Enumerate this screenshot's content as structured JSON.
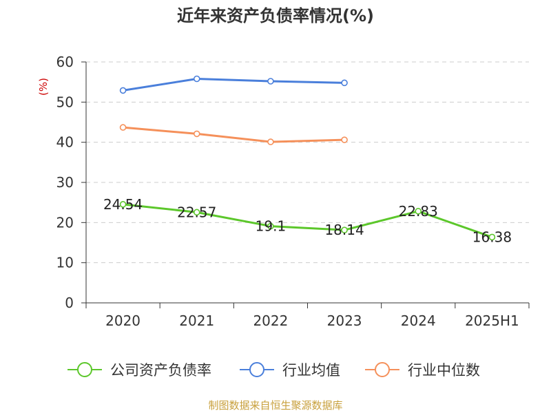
{
  "chart_data": {
    "type": "line",
    "title": "近年来资产负债率情况(%)",
    "ylabel": "(%)",
    "categories": [
      "2020",
      "2021",
      "2022",
      "2023",
      "2024",
      "2025H1"
    ],
    "ylim": [
      0,
      60
    ],
    "yticks": [
      "0",
      "10",
      "20",
      "30",
      "40",
      "50",
      "60"
    ],
    "grid": true,
    "legend_position": "bottom",
    "series": [
      {
        "name": "公司资产负债率",
        "color": "#5cc72b",
        "values": [
          24.54,
          22.57,
          19.1,
          18.14,
          22.83,
          16.38
        ],
        "labels": [
          "24.54",
          "22.57",
          "19.1",
          "18.14",
          "22.83",
          "16.38"
        ]
      },
      {
        "name": "行业均值",
        "color": "#4a7fdb",
        "values": [
          52.9,
          55.8,
          55.2,
          54.8,
          null,
          null
        ]
      },
      {
        "name": "行业中位数",
        "color": "#f5905a",
        "values": [
          43.7,
          42.1,
          40.1,
          40.6,
          null,
          null
        ]
      }
    ]
  },
  "source": "制图数据来自恒生聚源数据库"
}
